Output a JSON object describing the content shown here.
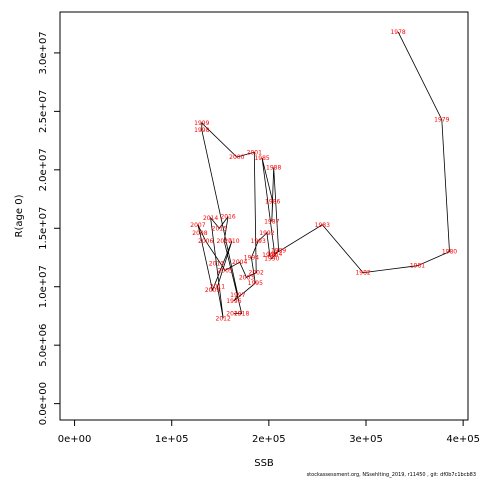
{
  "chart_data": {
    "type": "line",
    "xlabel": "SSB",
    "ylabel": "R(age 0)",
    "xlim": [
      -15000,
      405000
    ],
    "ylim": [
      -1400000,
      33500000
    ],
    "x_ticks": [
      0,
      100000,
      200000,
      300000,
      400000
    ],
    "x_tick_labels": [
      "0e+00",
      "1e+05",
      "2e+05",
      "3e+05",
      "4e+05"
    ],
    "y_ticks": [
      0,
      5000000,
      10000000,
      15000000,
      20000000,
      25000000,
      30000000
    ],
    "y_tick_labels": [
      "0.0e+00",
      "5.0e+06",
      "1.0e+07",
      "1.5e+07",
      "2.0e+07",
      "2.5e+07",
      "3.0e+07"
    ],
    "grid": false,
    "line_color": "#000000",
    "label_color": "#ff0000",
    "points": [
      {
        "year": "1978",
        "x": 333000,
        "y": 31800000
      },
      {
        "year": "1979",
        "x": 378000,
        "y": 24300000
      },
      {
        "year": "1980",
        "x": 386000,
        "y": 13000000
      },
      {
        "year": "1981",
        "x": 353000,
        "y": 11800000
      },
      {
        "year": "1982",
        "x": 297000,
        "y": 11200000
      },
      {
        "year": "1983",
        "x": 255000,
        "y": 15300000
      },
      {
        "year": "1984",
        "x": 206000,
        "y": 12800000
      },
      {
        "year": "1985",
        "x": 193000,
        "y": 21000000
      },
      {
        "year": "1986",
        "x": 204000,
        "y": 17300000
      },
      {
        "year": "1987",
        "x": 203000,
        "y": 15600000
      },
      {
        "year": "1988",
        "x": 205000,
        "y": 20200000
      },
      {
        "year": "1989",
        "x": 210000,
        "y": 13100000
      },
      {
        "year": "1990",
        "x": 203000,
        "y": 12400000
      },
      {
        "year": "1991",
        "x": 201000,
        "y": 12700000
      },
      {
        "year": "1992",
        "x": 198000,
        "y": 14600000
      },
      {
        "year": "1993",
        "x": 189000,
        "y": 13900000
      },
      {
        "year": "1994",
        "x": 182000,
        "y": 12500000
      },
      {
        "year": "1995",
        "x": 186000,
        "y": 10300000
      },
      {
        "year": "1996",
        "x": 164000,
        "y": 8800000
      },
      {
        "year": "1997",
        "x": 168000,
        "y": 9300000
      },
      {
        "year": "1998",
        "x": 131000,
        "y": 23400000
      },
      {
        "year": "1999",
        "x": 131000,
        "y": 24000000
      },
      {
        "year": "2000",
        "x": 167000,
        "y": 21100000
      },
      {
        "year": "2001",
        "x": 185000,
        "y": 21500000
      },
      {
        "year": "2002",
        "x": 187000,
        "y": 11200000
      },
      {
        "year": "2003",
        "x": 177000,
        "y": 10800000
      },
      {
        "year": "2004",
        "x": 170000,
        "y": 12100000
      },
      {
        "year": "2005",
        "x": 155000,
        "y": 11400000
      },
      {
        "year": "2006",
        "x": 135000,
        "y": 13900000
      },
      {
        "year": "2007",
        "x": 127000,
        "y": 15300000
      },
      {
        "year": "2008",
        "x": 129000,
        "y": 14600000
      },
      {
        "year": "2009",
        "x": 142000,
        "y": 9700000
      },
      {
        "year": "2010",
        "x": 162000,
        "y": 13900000
      },
      {
        "year": "2011",
        "x": 147000,
        "y": 10000000
      },
      {
        "year": "2012",
        "x": 153000,
        "y": 7300000
      },
      {
        "year": "2013",
        "x": 146000,
        "y": 12000000
      },
      {
        "year": "2014",
        "x": 140000,
        "y": 15900000
      },
      {
        "year": "2015",
        "x": 149000,
        "y": 15000000
      },
      {
        "year": "2016",
        "x": 158000,
        "y": 16000000
      },
      {
        "year": "2017",
        "x": 154000,
        "y": 13900000
      },
      {
        "year": "2018",
        "x": 172000,
        "y": 7700000
      },
      {
        "year": "2019",
        "x": 164000,
        "y": 7700000
      }
    ]
  },
  "footer": "stockassessment.org, NSsehlting_2019, r11450 , git: df0b7c1bcb83"
}
